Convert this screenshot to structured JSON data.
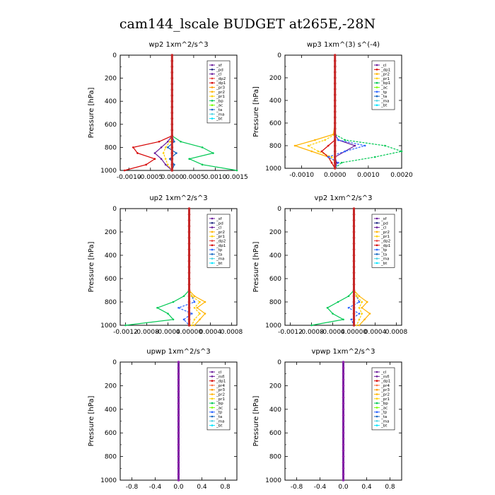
{
  "title": "cam144_lscale  BUDGET at265E,-28N",
  "colors": {
    "sf": "#6a1b9a",
    "pd": "#1a237e",
    "cl": "#6a1b9a",
    "mfl": "#6a1b9a",
    "dp1": "#d50000",
    "dp2": "#e53935",
    "pr1": "#ffd000",
    "pr2": "#ffb300",
    "pr3": "#ff9800",
    "pr4": "#ff7043",
    "bp": "#00c853",
    "bp1": "#00c853",
    "ac": "#76ff03",
    "tp": "#2962ff",
    "ta": "#1565c0",
    "ma": "#4dd0e1",
    "bt": "#00e5ff",
    "accent_line": "#c62828"
  },
  "chart_data": [
    {
      "id": "wp2",
      "type": "line",
      "title": "wp2   1xm^2/s^3",
      "ylabel": "Pressure  [hPa]",
      "ylim": [
        1000,
        0
      ],
      "xlim": [
        -0.0012,
        0.0015
      ],
      "xticks": [
        -0.001,
        -0.0005,
        0.0,
        0.0005,
        0.001,
        0.0015
      ],
      "xtick_labels": [
        "-0.0010",
        "-0.0005",
        "0.0000",
        "0.0005",
        "0.0010",
        "0.0015"
      ],
      "yticks": [
        0,
        200,
        400,
        600,
        800,
        1000
      ],
      "legend_loc": "top-right",
      "legend": [
        "_sf",
        "_pd",
        "_cl",
        "_dp2",
        "_dp1",
        "_pr3",
        "_pr2",
        "_pr1",
        "_bp",
        "_ac",
        "_ta",
        "_ma",
        "_bt"
      ],
      "series": [
        {
          "key": "cl",
          "y": [
            0,
            200,
            400,
            600,
            700,
            750,
            800,
            850,
            900,
            950,
            1000
          ],
          "x": [
            0,
            0,
            0,
            0,
            0,
            -0.0001,
            -0.00025,
            -0.0004,
            -0.00025,
            -0.00015,
            0.0
          ]
        },
        {
          "key": "dp1",
          "y": [
            0,
            200,
            400,
            600,
            700,
            750,
            800,
            850,
            900,
            950,
            1000
          ],
          "x": [
            0,
            0,
            0,
            0,
            0,
            -0.0003,
            -0.0009,
            -0.0008,
            -0.0004,
            -0.0006,
            -0.0011
          ]
        },
        {
          "key": "pr1",
          "y": [
            0,
            200,
            400,
            600,
            700,
            750,
            800,
            850,
            900,
            950,
            1000
          ],
          "x": [
            0,
            0,
            0,
            0,
            0,
            -5e-05,
            -0.00015,
            -0.0002,
            -0.00015,
            -0.0001,
            0
          ]
        },
        {
          "key": "bp",
          "y": [
            0,
            200,
            400,
            600,
            700,
            750,
            800,
            850,
            900,
            950,
            1000
          ],
          "x": [
            0,
            0,
            0,
            0,
            0,
            0.0002,
            0.0007,
            0.00095,
            0.0004,
            0.0007,
            0.0015
          ]
        },
        {
          "key": "ta",
          "y": [
            0,
            200,
            400,
            600,
            700,
            750,
            800,
            850,
            900,
            950,
            1000
          ],
          "x": [
            0,
            0,
            0,
            0,
            0,
            5e-05,
            -0.0001,
            0.0001,
            -5e-05,
            5e-05,
            0
          ]
        },
        {
          "key": "sf",
          "y": [
            0,
            1000
          ],
          "x": [
            0,
            0
          ]
        }
      ]
    },
    {
      "id": "wp3",
      "type": "line",
      "title": "wp3   1xm^(3) s^(-4)",
      "ylabel": "Pressure  [hPa]",
      "ylim": [
        1000,
        0
      ],
      "xlim": [
        -0.0015,
        0.002
      ],
      "xticks": [
        -0.001,
        0.0,
        0.001,
        0.002
      ],
      "xtick_labels": [
        "-0.0010",
        "0.0000",
        "0.0010",
        "0.0020"
      ],
      "yticks": [
        0,
        200,
        400,
        600,
        800,
        1000
      ],
      "legend_loc": "top-right",
      "legend": [
        "_cl",
        "_dp1",
        "_pr2",
        "_pr1",
        "_bp1",
        "_ac",
        "_tp",
        "_ta",
        "_ma",
        "_bt"
      ],
      "series": [
        {
          "key": "cl",
          "y": [
            0,
            200,
            400,
            600,
            700,
            750,
            800,
            850,
            900,
            950,
            1000
          ],
          "x": [
            0,
            0,
            0,
            0,
            0,
            0.0001,
            0.0006,
            0.0003,
            0.0,
            5e-05,
            0
          ]
        },
        {
          "key": "pr2",
          "y": [
            0,
            200,
            400,
            600,
            700,
            750,
            800,
            850,
            900,
            950,
            1000
          ],
          "x": [
            0,
            0,
            0,
            0,
            -5e-05,
            -0.0006,
            -0.0012,
            -0.0007,
            -0.0002,
            -0.0001,
            0
          ]
        },
        {
          "key": "pr1",
          "y": [
            0,
            200,
            400,
            600,
            700,
            750,
            800,
            850,
            900,
            950,
            1000
          ],
          "x": [
            0,
            0,
            0,
            0,
            0,
            -0.0003,
            -0.0008,
            -0.0005,
            -0.0001,
            0,
            0
          ]
        },
        {
          "key": "dp1",
          "y": [
            0,
            200,
            400,
            600,
            700,
            750,
            800,
            850,
            900,
            950,
            1000
          ],
          "x": [
            0,
            0,
            0,
            0,
            0,
            0,
            -0.0002,
            -0.0004,
            -0.0002,
            -0.0001,
            0
          ]
        },
        {
          "key": "bp1",
          "y": [
            0,
            200,
            400,
            600,
            700,
            750,
            800,
            850,
            900,
            950,
            1000
          ],
          "x": [
            0,
            0,
            0,
            0,
            0,
            0.0003,
            0.0015,
            0.002,
            0.0012,
            0.0002,
            0
          ]
        },
        {
          "key": "tp",
          "y": [
            0,
            200,
            400,
            600,
            700,
            750,
            800,
            850,
            900,
            950,
            1000
          ],
          "x": [
            0,
            0,
            0,
            0,
            0,
            0.0001,
            0.0009,
            0.0003,
            -0.0002,
            0.0001,
            0
          ]
        },
        {
          "key": "sf",
          "y": [
            0,
            1000
          ],
          "x": [
            0,
            0
          ]
        }
      ]
    },
    {
      "id": "up2",
      "type": "line",
      "title": "up2   1xm^2/s^3",
      "ylabel": "Pressure  [hPa]",
      "ylim": [
        1000,
        0
      ],
      "xlim": [
        -0.0013,
        0.0009
      ],
      "xticks": [
        -0.0012,
        -0.0008,
        -0.0004,
        0.0,
        0.0004,
        0.0008
      ],
      "xtick_labels": [
        "-0.0012",
        "-0.0008",
        "-0.0004",
        "0.00000",
        "0.0004",
        "0.0008"
      ],
      "yticks": [
        0,
        200,
        400,
        600,
        800,
        1000
      ],
      "legend_loc": "top-right",
      "legend": [
        "_sf",
        "_pd",
        "_cl",
        "_pr2",
        "_pr1",
        "_dp2",
        "_dp1",
        "_tp",
        "_ta",
        "_ma",
        "_bt"
      ],
      "series": [
        {
          "key": "bp",
          "y": [
            0,
            200,
            400,
            600,
            700,
            750,
            800,
            850,
            900,
            950,
            1000
          ],
          "x": [
            0,
            0,
            0,
            0,
            0,
            -0.0001,
            -0.0003,
            -0.0006,
            -0.0004,
            -0.0003,
            -0.0012
          ]
        },
        {
          "key": "tp",
          "y": [
            0,
            200,
            400,
            600,
            700,
            750,
            800,
            850,
            900,
            950,
            1000
          ],
          "x": [
            0,
            0,
            0,
            0,
            0,
            5e-05,
            0.0001,
            -0.0002,
            5e-05,
            -0.0001,
            0
          ]
        },
        {
          "key": "pr2",
          "y": [
            0,
            200,
            400,
            600,
            700,
            750,
            800,
            850,
            900,
            950,
            1000
          ],
          "x": [
            0,
            0,
            0,
            0,
            0,
            0.0001,
            0.0003,
            0.00015,
            0.0003,
            0.0002,
            0.0001
          ]
        },
        {
          "key": "pr1",
          "y": [
            0,
            200,
            400,
            600,
            700,
            750,
            800,
            850,
            900,
            950,
            1000
          ],
          "x": [
            0,
            0,
            0,
            0,
            0,
            5e-05,
            0.0002,
            0.0001,
            0.0002,
            0.0001,
            5e-05
          ]
        },
        {
          "key": "sf",
          "y": [
            0,
            1000
          ],
          "x": [
            0,
            0
          ]
        }
      ]
    },
    {
      "id": "vp2",
      "type": "line",
      "title": "vp2   1xm^2/s^3",
      "ylabel": "Pressure  [hPa]",
      "ylim": [
        1000,
        0
      ],
      "xlim": [
        -0.0013,
        0.0009
      ],
      "xticks": [
        -0.0012,
        -0.0008,
        -0.0004,
        0.0,
        0.0004,
        0.0008
      ],
      "xtick_labels": [
        "-0.0012",
        "-0.0008",
        "-0.0004",
        "0.00000",
        "0.0004",
        "0.0008"
      ],
      "yticks": [
        0,
        200,
        400,
        600,
        800,
        1000
      ],
      "legend_loc": "top-right",
      "legend": [
        "_sf",
        "_pd",
        "_cl",
        "_pr2",
        "_pr1",
        "_dp2",
        "_dp1",
        "_tp",
        "_ta",
        "_ma",
        "_bt"
      ],
      "series": [
        {
          "key": "bp",
          "y": [
            0,
            200,
            400,
            600,
            700,
            750,
            800,
            850,
            900,
            950,
            1000
          ],
          "x": [
            0,
            0,
            0,
            0,
            0,
            -0.0001,
            -0.0003,
            -0.0005,
            -0.0004,
            -0.0002,
            -0.0008
          ]
        },
        {
          "key": "tp",
          "y": [
            0,
            200,
            400,
            600,
            700,
            750,
            800,
            850,
            900,
            950,
            1000
          ],
          "x": [
            0,
            0,
            0,
            0,
            0,
            5e-05,
            0.0001,
            -0.0001,
            0.0001,
            -5e-05,
            0
          ]
        },
        {
          "key": "pr2",
          "y": [
            0,
            200,
            400,
            600,
            700,
            750,
            800,
            850,
            900,
            950,
            1000
          ],
          "x": [
            0,
            0,
            0,
            0,
            0,
            0.0001,
            0.00025,
            0.00015,
            0.0003,
            0.0002,
            0.0001
          ]
        },
        {
          "key": "pr1",
          "y": [
            0,
            200,
            400,
            600,
            700,
            750,
            800,
            850,
            900,
            950,
            1000
          ],
          "x": [
            0,
            0,
            0,
            0,
            0,
            5e-05,
            0.00015,
            0.0001,
            0.00015,
            0.0001,
            5e-05
          ]
        },
        {
          "key": "sf",
          "y": [
            0,
            1000
          ],
          "x": [
            0,
            0
          ]
        }
      ]
    },
    {
      "id": "upwp",
      "type": "line",
      "title": "upwp   1xm^2/s^3",
      "ylabel": "Pressure  [hPa]",
      "ylim": [
        1000,
        0
      ],
      "xlim": [
        -1.0,
        1.0
      ],
      "xticks": [
        -0.8,
        -0.4,
        0.0,
        0.4,
        0.8
      ],
      "xtick_labels": [
        "-0.8",
        "-0.4",
        "0.0",
        "0.4",
        "0.8"
      ],
      "yticks": [
        0,
        200,
        400,
        600,
        800,
        1000
      ],
      "legend_loc": "top-right",
      "legend": [
        "_cl",
        "_mfl",
        "_dp1",
        "_pr4",
        "_pr3",
        "_pr2",
        "_pr1",
        "_bp",
        "_ac",
        "_tp",
        "_ta",
        "_ma",
        "_bt"
      ],
      "series": [
        {
          "key": "cl",
          "y": [
            0,
            1000
          ],
          "x": [
            0,
            0
          ]
        }
      ]
    },
    {
      "id": "vpwp",
      "type": "line",
      "title": "vpwp   1xm^2/s^3",
      "ylabel": "Pressure  [hPa]",
      "ylim": [
        1000,
        0
      ],
      "xlim": [
        -1.0,
        1.0
      ],
      "xticks": [
        -0.8,
        -0.4,
        0.0,
        0.4,
        0.8
      ],
      "xtick_labels": [
        "-0.8",
        "-0.4",
        "0.0",
        "0.4",
        "0.8"
      ],
      "yticks": [
        0,
        200,
        400,
        600,
        800,
        1000
      ],
      "legend_loc": "top-right",
      "legend": [
        "_cl",
        "_mfl",
        "_dp1",
        "_pr4",
        "_pr3",
        "_pr2",
        "_pr1",
        "_bp",
        "_ac",
        "_tp",
        "_ta",
        "_ma",
        "_bt"
      ],
      "series": [
        {
          "key": "cl",
          "y": [
            0,
            1000
          ],
          "x": [
            0,
            0
          ]
        }
      ]
    }
  ]
}
